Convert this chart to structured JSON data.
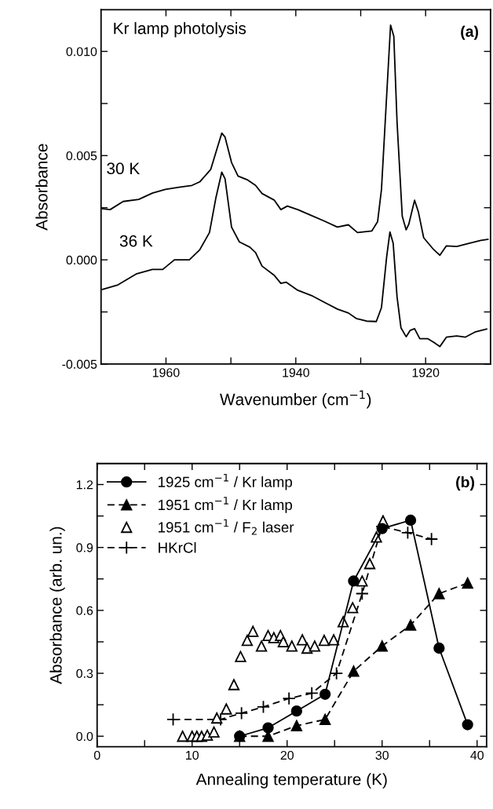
{
  "chart_data": [
    {
      "type": "line",
      "xlabel": "Wavenumber (cm$^{−1}$)",
      "ylabel": "Absorbance",
      "annotations": [
        "Kr lamp photolysis",
        "(a)"
      ],
      "xlim": [
        1970,
        1910
      ],
      "ylim": [
        -0.005,
        0.012
      ],
      "xticks": [
        1960,
        {
          "value": 1950,
          "label": null
        },
        1940,
        {
          "value": 1930,
          "label": null
        },
        1920
      ],
      "yticks": [
        {
          "value": -0.005,
          "label": "-0.005"
        },
        {
          "value": -0.0025,
          "label": null
        },
        {
          "value": 0.0,
          "label": "0.000"
        },
        {
          "value": 0.0025,
          "label": null
        },
        {
          "value": 0.005,
          "label": "0.005"
        },
        {
          "value": 0.0075,
          "label": null
        },
        {
          "value": 0.01,
          "label": "0.010"
        }
      ],
      "grid": false,
      "legend": false,
      "marker": "none",
      "line_style": "solid",
      "series": [
        {
          "name": "30 K",
          "color": "#000000",
          "x": [
            1969.8,
            1968.6,
            1966.6,
            1964.2,
            1962.1,
            1960.1,
            1958.0,
            1956.0,
            1954.8,
            1953.1,
            1952.1,
            1951.4,
            1950.9,
            1949.9,
            1948.9,
            1947.4,
            1946.2,
            1945.2,
            1943.3,
            1942.3,
            1941.3,
            1939.7,
            1937.6,
            1935.6,
            1933.6,
            1931.9,
            1930.5,
            1928.3,
            1927.4,
            1926.8,
            1926.0,
            1925.4,
            1924.9,
            1924.4,
            1923.6,
            1923.0,
            1922.6,
            1921.7,
            1921.1,
            1920.3,
            1918.9,
            1917.8,
            1916.8,
            1915.2,
            1913.2,
            1911.5,
            1910.4
          ],
          "values": [
            0.00245,
            0.00241,
            0.0028,
            0.0029,
            0.0032,
            0.00338,
            0.00348,
            0.00357,
            0.00374,
            0.00434,
            0.00537,
            0.00608,
            0.00589,
            0.00467,
            0.00402,
            0.00383,
            0.00357,
            0.00318,
            0.00286,
            0.00241,
            0.00258,
            0.00241,
            0.00213,
            0.00186,
            0.00157,
            0.00168,
            0.00131,
            0.00138,
            0.00183,
            0.00338,
            0.00789,
            0.01126,
            0.01072,
            0.0066,
            0.00209,
            0.00144,
            0.0017,
            0.00286,
            0.00228,
            0.00106,
            0.00054,
            0.00022,
            0.00067,
            0.00064,
            0.0008,
            0.00093,
            0.00098
          ]
        },
        {
          "name": "36 K",
          "color": "#000000",
          "x": [
            1969.8,
            1967.4,
            1964.6,
            1962.1,
            1960.5,
            1958.7,
            1956.4,
            1954.8,
            1953.3,
            1952.3,
            1951.4,
            1950.9,
            1949.9,
            1948.7,
            1947.1,
            1946.2,
            1945.2,
            1943.3,
            1942.3,
            1941.5,
            1939.7,
            1937.6,
            1935.6,
            1933.6,
            1931.9,
            1930.7,
            1929.1,
            1927.6,
            1926.8,
            1926.0,
            1925.5,
            1925.0,
            1924.4,
            1923.8,
            1923.0,
            1922.4,
            1921.7,
            1920.9,
            1919.7,
            1918.7,
            1917.8,
            1916.8,
            1915.2,
            1913.9,
            1912.3,
            1910.6
          ],
          "values": [
            -0.00142,
            -0.0012,
            -0.00068,
            -0.00046,
            -0.00046,
            0.0,
            0.0,
            0.00048,
            0.00131,
            0.00299,
            0.00421,
            0.00389,
            0.00157,
            0.00086,
            0.00061,
            0.00035,
            -0.0003,
            -0.00075,
            -0.00113,
            -0.00107,
            -0.00146,
            -0.00171,
            -0.00204,
            -0.00236,
            -0.00255,
            -0.00281,
            -0.00294,
            -0.00296,
            -0.00229,
            0.00015,
            0.00134,
            0.0008,
            -0.00178,
            -0.00326,
            -0.00369,
            -0.00339,
            -0.0033,
            -0.00378,
            -0.00378,
            -0.00397,
            -0.00416,
            -0.00371,
            -0.00365,
            -0.00371,
            -0.00345,
            -0.00332
          ]
        }
      ]
    },
    {
      "type": "line",
      "xlabel": "Annealing temperature (K)",
      "ylabel": "Absorbance (arb. un.)",
      "annotations": [
        "(b)"
      ],
      "xlim": [
        0,
        41
      ],
      "ylim": [
        -0.05,
        1.3
      ],
      "xticks": [
        0,
        {
          "value": 5,
          "label": null
        },
        10,
        {
          "value": 15,
          "label": null
        },
        20,
        {
          "value": 25,
          "label": null
        },
        30,
        {
          "value": 35,
          "label": null
        },
        40
      ],
      "yticks": [
        {
          "value": 0.0,
          "label": "0.0"
        },
        {
          "value": 0.15,
          "label": null
        },
        {
          "value": 0.3,
          "label": "0.3"
        },
        {
          "value": 0.45,
          "label": null
        },
        {
          "value": 0.6,
          "label": "0.6"
        },
        {
          "value": 0.75,
          "label": null
        },
        {
          "value": 0.9,
          "label": "0.9"
        },
        {
          "value": 1.05,
          "label": null
        },
        {
          "value": 1.2,
          "label": "1.2"
        }
      ],
      "grid": false,
      "legend": "top left",
      "series": [
        {
          "name": "1925 cm$^{−1}$ / Kr lamp",
          "color": "#000000",
          "marker": "circle",
          "line_style": "solid",
          "x": [
            15,
            18,
            21,
            24,
            27,
            30,
            33,
            36,
            39
          ],
          "values": [
            0.0,
            0.04,
            0.12,
            0.2,
            0.74,
            0.99,
            1.03,
            0.42,
            0.055
          ]
        },
        {
          "name": "1951 cm$^{−1}$ / Kr lamp",
          "color": "#000000",
          "marker": "triangle",
          "line_style": "dashed",
          "x": [
            15,
            18,
            21,
            24,
            27,
            30,
            33,
            36,
            39
          ],
          "values": [
            0.0,
            0.0,
            0.05,
            0.08,
            0.31,
            0.43,
            0.53,
            0.68,
            0.73
          ]
        },
        {
          "name": "1951 cm$^{−1}$ / F$_{2}$ laser",
          "color": "#ffffff",
          "marker": "triangle",
          "line_style": "none",
          "type": "scatter",
          "x": [
            9.0,
            10.0,
            10.5,
            11.0,
            11.6,
            12.3,
            12.6,
            13.6,
            14.4,
            15.1,
            15.8,
            16.4,
            17.3,
            18.0,
            18.6,
            19.3,
            19.6,
            20.5,
            21.6,
            22.1,
            22.9,
            23.9,
            24.9,
            25.9,
            26.9,
            27.9,
            28.7,
            29.4,
            30.1
          ],
          "values": [
            0.0,
            0.0,
            0.0,
            0.0,
            0.005,
            0.02,
            0.087,
            0.13,
            0.246,
            0.38,
            0.457,
            0.5,
            0.43,
            0.48,
            0.47,
            0.48,
            0.45,
            0.43,
            0.46,
            0.42,
            0.43,
            0.457,
            0.46,
            0.546,
            0.613,
            0.74,
            0.823,
            0.95,
            1.027
          ]
        },
        {
          "name": "HKrCl",
          "color": "#000000",
          "marker": "cross",
          "line_style": "dashed",
          "x": [
            8,
            13,
            15.2,
            17.5,
            20.2,
            22.6,
            25.2,
            27.9,
            30,
            32.7,
            35.2
          ],
          "values": [
            0.08,
            0.08,
            0.11,
            0.14,
            0.18,
            0.205,
            0.3,
            0.68,
            1.0,
            0.97,
            0.94
          ]
        }
      ]
    }
  ]
}
